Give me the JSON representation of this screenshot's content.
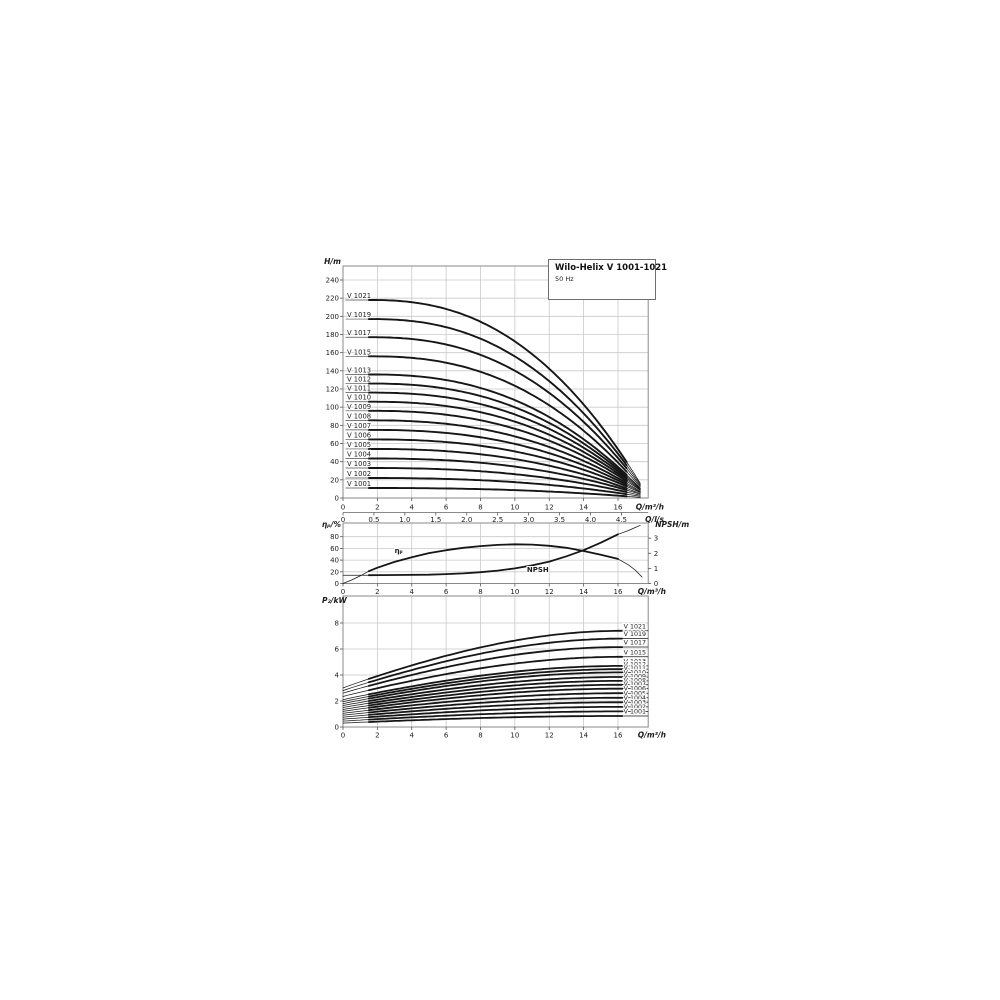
{
  "title_box": {
    "title": "Wilo-Helix V 1001-1021",
    "subtitle": "50 Hz"
  },
  "colors": {
    "background": "#ffffff",
    "curve": "#161616",
    "grid": "#c9c9c9",
    "border": "#8a8a8a",
    "tick": "#555555",
    "text": "#1c1c1c",
    "leader": "#4a4a4a"
  },
  "chart_data": [
    {
      "id": "head-flow-chart",
      "type": "line",
      "title": "Wilo-Helix V 1001-1021",
      "subtitle": "50 Hz",
      "ylabel": "H/m",
      "xlabel": "Q/m³/h",
      "xlabel_secondary": "Q/l/s",
      "grid": true,
      "xlim": [
        0,
        17.75
      ],
      "ylim": [
        0,
        255
      ],
      "x_ticks": [
        0,
        2,
        4,
        6,
        8,
        10,
        12,
        14,
        16
      ],
      "x_ticks_secondary_lps": [
        "0",
        "0.5",
        "1.0",
        "1.5",
        "2.0",
        "2.5",
        "3.0",
        "3.5",
        "4.0",
        "4.5"
      ],
      "y_ticks": [
        0,
        20,
        40,
        60,
        80,
        100,
        120,
        140,
        160,
        180,
        200,
        220,
        240
      ],
      "min_flow_m3h": 1.5,
      "max_flow_m3h": 17.4,
      "curve_shape_exponent": 2.4,
      "series": [
        {
          "name": "V 1021",
          "head_at_min_flow_m": 218.0,
          "head_at_max_flow_m": 13.0
        },
        {
          "name": "V 1019",
          "head_at_min_flow_m": 197.0,
          "head_at_max_flow_m": 12.0
        },
        {
          "name": "V 1017",
          "head_at_min_flow_m": 177.0,
          "head_at_max_flow_m": 11.0
        },
        {
          "name": "V 1015",
          "head_at_min_flow_m": 156.0,
          "head_at_max_flow_m": 10.0
        },
        {
          "name": "V 1013",
          "head_at_min_flow_m": 136.0,
          "head_at_max_flow_m": 9.0
        },
        {
          "name": "V 1012",
          "head_at_min_flow_m": 126.0,
          "head_at_max_flow_m": 8.5
        },
        {
          "name": "V 1011",
          "head_at_min_flow_m": 116.0,
          "head_at_max_flow_m": 8.0
        },
        {
          "name": "V 1010",
          "head_at_min_flow_m": 106.0,
          "head_at_max_flow_m": 7.5
        },
        {
          "name": "V 1009",
          "head_at_min_flow_m": 96.0,
          "head_at_max_flow_m": 7.0
        },
        {
          "name": "V 1008",
          "head_at_min_flow_m": 85.5,
          "head_at_max_flow_m": 6.0
        },
        {
          "name": "V 1007",
          "head_at_min_flow_m": 75.0,
          "head_at_max_flow_m": 5.5
        },
        {
          "name": "V 1006",
          "head_at_min_flow_m": 64.5,
          "head_at_max_flow_m": 5.0
        },
        {
          "name": "V 1005",
          "head_at_min_flow_m": 54.0,
          "head_at_max_flow_m": 4.0
        },
        {
          "name": "V 1004",
          "head_at_min_flow_m": 43.5,
          "head_at_max_flow_m": 3.5
        },
        {
          "name": "V 1003",
          "head_at_min_flow_m": 33.0,
          "head_at_max_flow_m": 2.5
        },
        {
          "name": "V 1002",
          "head_at_min_flow_m": 22.0,
          "head_at_max_flow_m": 1.5
        },
        {
          "name": "V 1001",
          "head_at_min_flow_m": 11.0,
          "head_at_max_flow_m": 0.5
        }
      ]
    },
    {
      "id": "efficiency-npsh-chart",
      "type": "line",
      "ylabel_left": "ηₚ/%",
      "ylabel_right": "NPSH/m",
      "xlabel": "Q/m³/h",
      "grid": true,
      "xlim": [
        0,
        17.75
      ],
      "ylim_left": [
        0,
        103
      ],
      "ylim_right": [
        0,
        4
      ],
      "x_ticks": [
        0,
        2,
        4,
        6,
        8,
        10,
        12,
        14,
        16
      ],
      "y_ticks_left": [
        0,
        20,
        40,
        60,
        80
      ],
      "y_ticks_right": [
        0,
        1,
        2,
        3
      ],
      "min_flow_m3h": 1.5,
      "curves": [
        {
          "name": "ηₚ",
          "axis": "left",
          "label_q": 3.0,
          "label_value": 52,
          "points": [
            [
              0,
              0
            ],
            [
              0.5,
              6
            ],
            [
              1,
              13
            ],
            [
              1.5,
              21
            ],
            [
              2,
              27
            ],
            [
              3,
              37
            ],
            [
              4,
              45
            ],
            [
              5,
              52
            ],
            [
              6,
              57
            ],
            [
              7,
              61
            ],
            [
              8,
              64
            ],
            [
              9,
              66
            ],
            [
              10,
              67
            ],
            [
              11,
              66.5
            ],
            [
              12,
              64.5
            ],
            [
              13,
              61
            ],
            [
              14,
              55.5
            ],
            [
              15,
              49
            ],
            [
              16,
              42
            ],
            [
              16.6,
              32
            ],
            [
              17,
              23
            ],
            [
              17.4,
              11
            ]
          ]
        },
        {
          "name": "NPSH",
          "axis": "right",
          "label_q": 10.7,
          "label_value": 0.76,
          "points": [
            [
              0,
              0.55
            ],
            [
              1.5,
              0.55
            ],
            [
              3,
              0.56
            ],
            [
              5,
              0.58
            ],
            [
              6,
              0.62
            ],
            [
              7,
              0.67
            ],
            [
              8,
              0.75
            ],
            [
              9,
              0.85
            ],
            [
              10,
              1.0
            ],
            [
              11,
              1.2
            ],
            [
              12,
              1.45
            ],
            [
              13,
              1.8
            ],
            [
              14,
              2.2
            ],
            [
              15,
              2.7
            ],
            [
              16,
              3.25
            ],
            [
              16.6,
              3.5
            ],
            [
              17,
              3.7
            ],
            [
              17.3,
              3.85
            ]
          ]
        }
      ]
    },
    {
      "id": "power-flow-chart",
      "type": "line",
      "ylabel": "P₂/kW",
      "xlabel": "Q/m³/h",
      "grid": true,
      "xlim": [
        0,
        17.75
      ],
      "ylim": [
        0,
        10
      ],
      "x_ticks": [
        0,
        2,
        4,
        6,
        8,
        10,
        12,
        14,
        16
      ],
      "y_ticks": [
        0,
        2,
        4,
        6,
        8
      ],
      "min_flow_m3h": 1.5,
      "max_thick_flow_m3h": 16.3,
      "power_curve_shape_exponent": 0.95,
      "series": [
        {
          "name": "V 1021",
          "p2_at_zero_flow_kw": 3.0,
          "p2_at_max_flow_kw": 7.4
        },
        {
          "name": "V 1019",
          "p2_at_zero_flow_kw": 2.8,
          "p2_at_max_flow_kw": 6.8
        },
        {
          "name": "V 1017",
          "p2_at_zero_flow_kw": 2.6,
          "p2_at_max_flow_kw": 6.15
        },
        {
          "name": "V 1015",
          "p2_at_zero_flow_kw": 2.35,
          "p2_at_max_flow_kw": 5.4
        },
        {
          "name": "V 1013",
          "p2_at_zero_flow_kw": 2.1,
          "p2_at_max_flow_kw": 4.7
        },
        {
          "name": "V 1012",
          "p2_at_zero_flow_kw": 1.95,
          "p2_at_max_flow_kw": 4.45
        },
        {
          "name": "V 1011",
          "p2_at_zero_flow_kw": 1.8,
          "p2_at_max_flow_kw": 4.2
        },
        {
          "name": "V 1010",
          "p2_at_zero_flow_kw": 1.65,
          "p2_at_max_flow_kw": 3.85
        },
        {
          "name": "V 1009",
          "p2_at_zero_flow_kw": 1.5,
          "p2_at_max_flow_kw": 3.55
        },
        {
          "name": "V 1008",
          "p2_at_zero_flow_kw": 1.35,
          "p2_at_max_flow_kw": 3.25
        },
        {
          "name": "V 1007",
          "p2_at_zero_flow_kw": 1.2,
          "p2_at_max_flow_kw": 2.95
        },
        {
          "name": "V 1006",
          "p2_at_zero_flow_kw": 1.05,
          "p2_at_max_flow_kw": 2.6
        },
        {
          "name": "V 1005",
          "p2_at_zero_flow_kw": 0.9,
          "p2_at_max_flow_kw": 2.25
        },
        {
          "name": "V 1004",
          "p2_at_zero_flow_kw": 0.75,
          "p2_at_max_flow_kw": 1.9
        },
        {
          "name": "V 1003",
          "p2_at_zero_flow_kw": 0.6,
          "p2_at_max_flow_kw": 1.55
        },
        {
          "name": "V 1002",
          "p2_at_zero_flow_kw": 0.45,
          "p2_at_max_flow_kw": 1.2
        },
        {
          "name": "V 1001",
          "p2_at_zero_flow_kw": 0.3,
          "p2_at_max_flow_kw": 0.85
        }
      ]
    }
  ]
}
